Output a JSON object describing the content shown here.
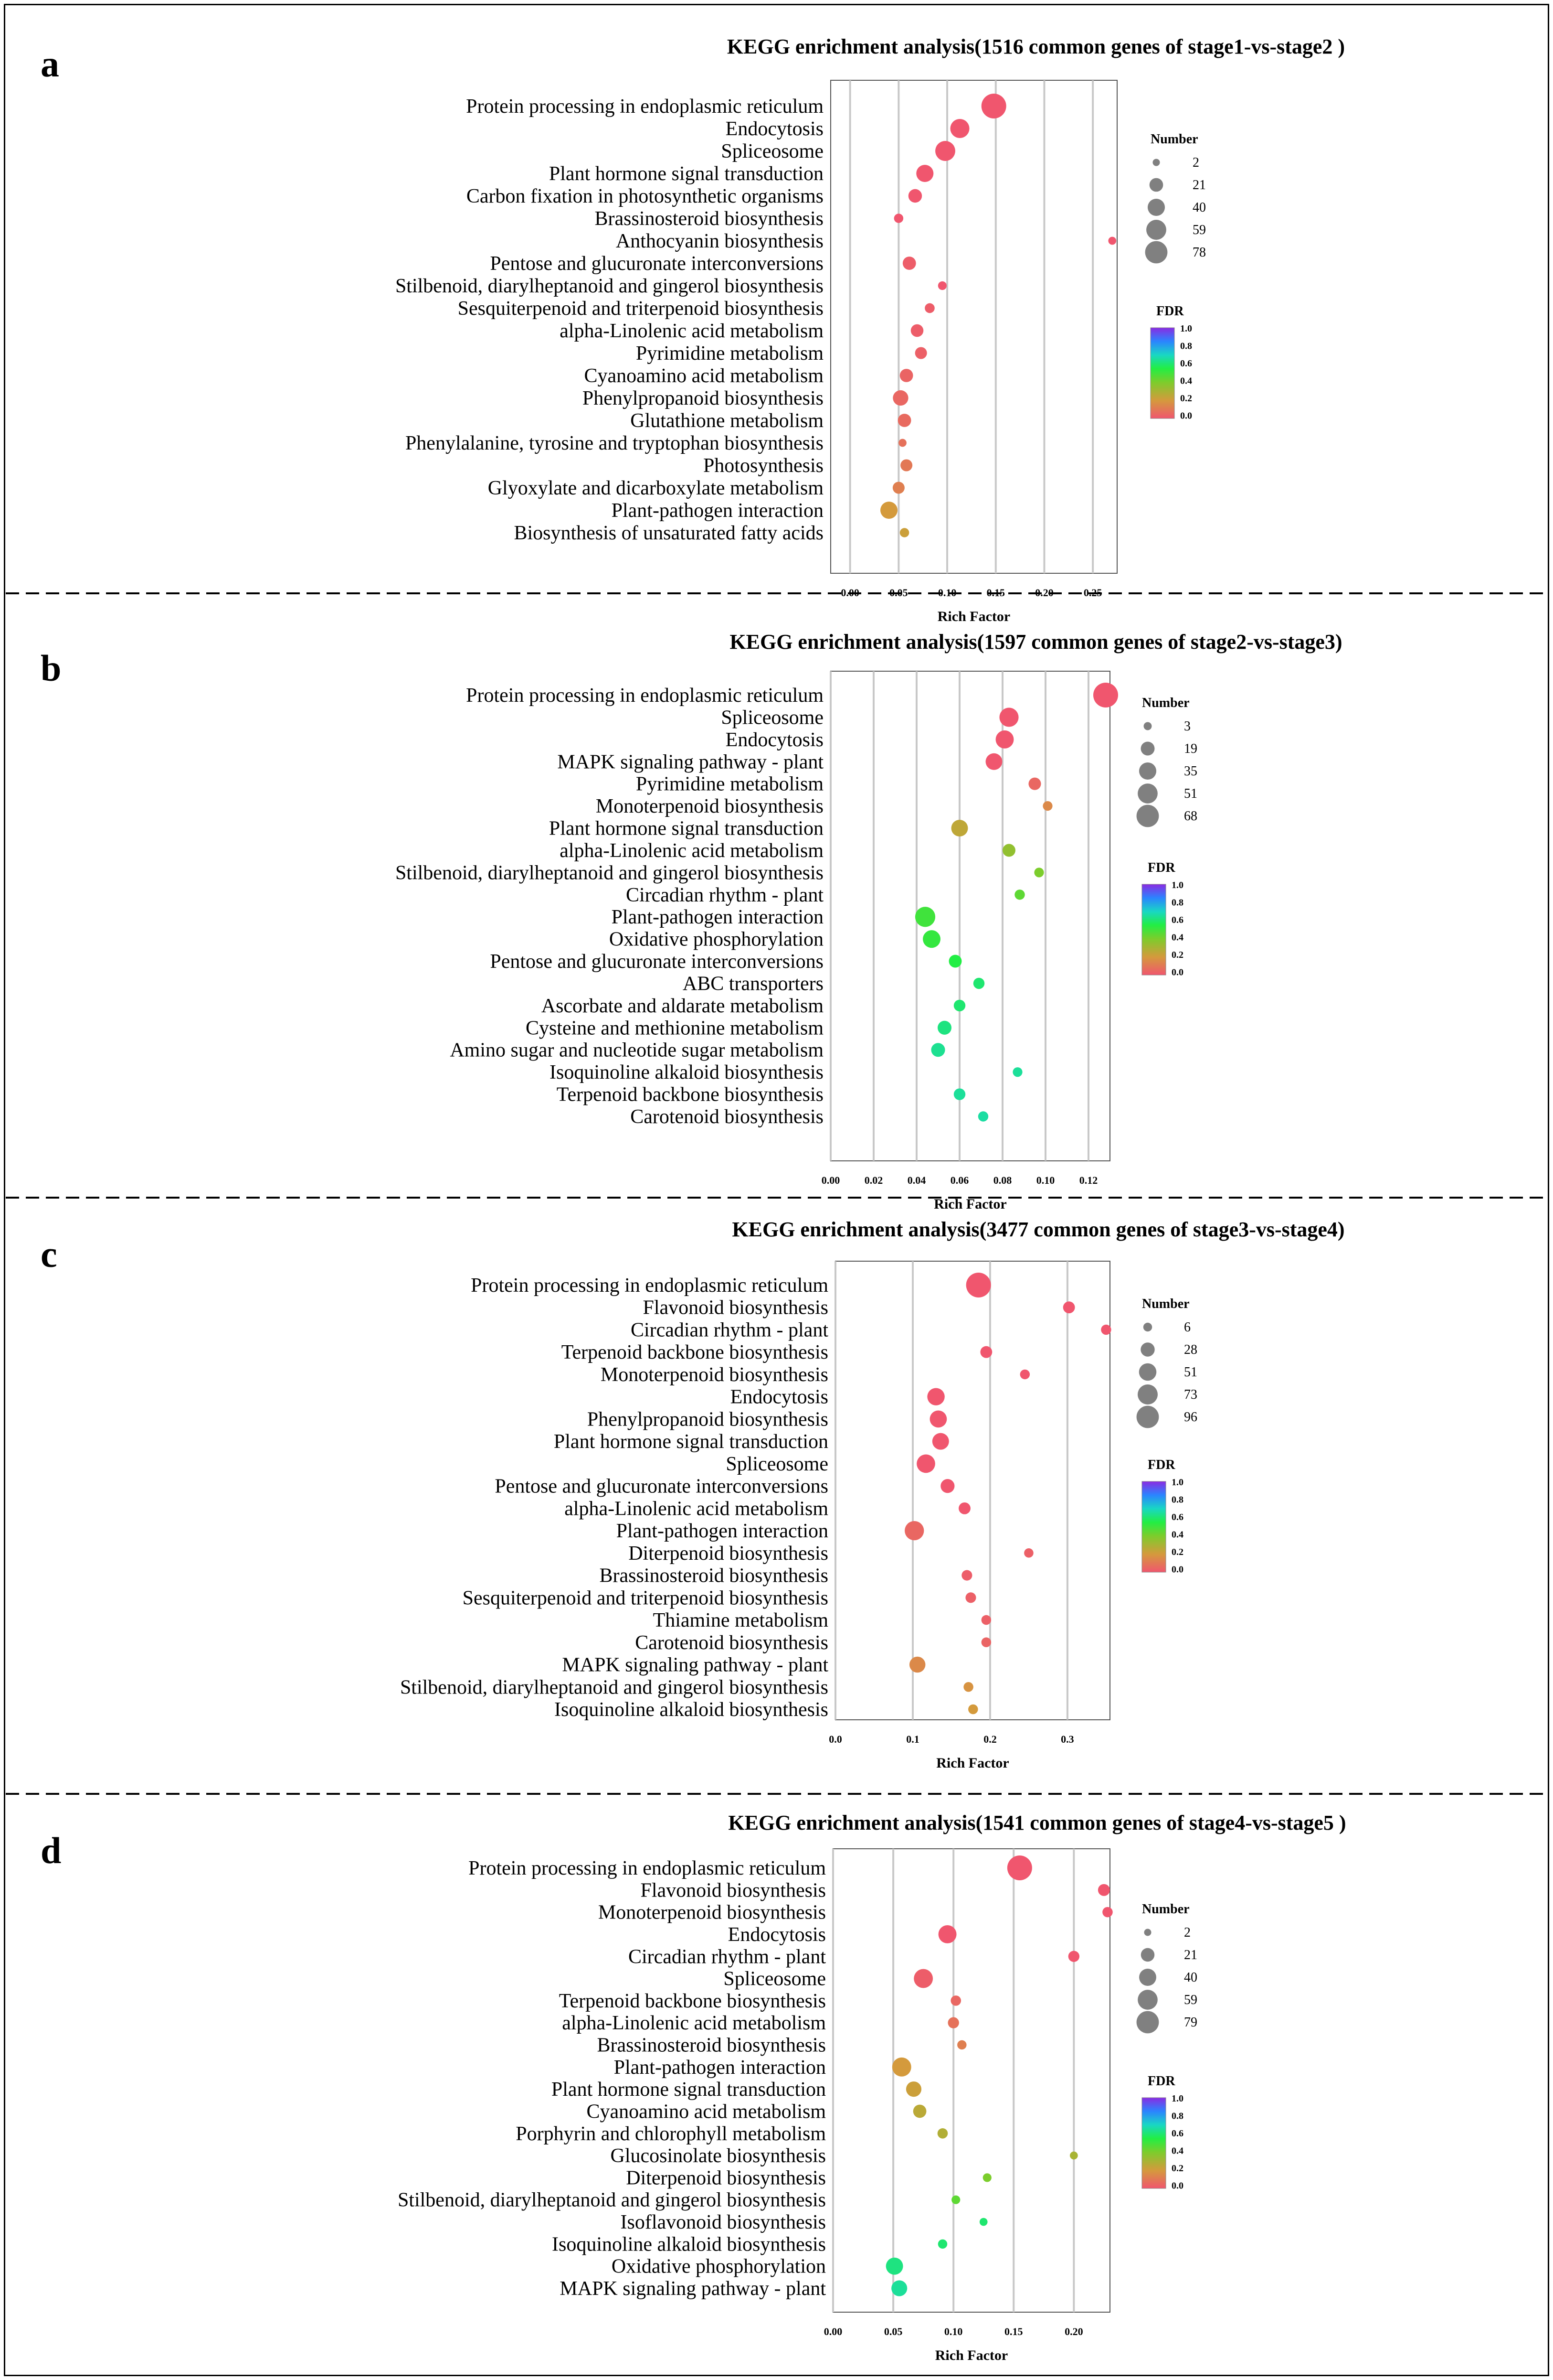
{
  "figure": {
    "legend_size_title": "Number",
    "legend_color_title": "FDR",
    "fdr_ticks": [
      "1.0",
      "0.8",
      "0.6",
      "0.4",
      "0.2",
      "0.0"
    ]
  },
  "chart_data": [
    {
      "panel": "a",
      "type": "scatter",
      "title": "KEGG enrichment analysis(1516 common genes of stage1-vs-stage2 )",
      "xlabel": "Rich Factor",
      "xlim": [
        -0.02,
        0.275
      ],
      "xticks": [
        0.0,
        0.05,
        0.1,
        0.15,
        0.2,
        0.25
      ],
      "xtick_labels": [
        "0.00",
        "0.05",
        "0.10",
        "0.15",
        "0.20",
        "0.25"
      ],
      "size_legend": [
        2,
        21,
        40,
        59,
        78
      ],
      "points": [
        {
          "pathway": "Protein processing in endoplasmic reticulum",
          "x": 0.148,
          "count": 78,
          "fdr": 0.0
        },
        {
          "pathway": "Endocytosis",
          "x": 0.113,
          "count": 40,
          "fdr": 0.0
        },
        {
          "pathway": "Spliceosome",
          "x": 0.098,
          "count": 45,
          "fdr": 0.0
        },
        {
          "pathway": "Plant hormone signal transduction",
          "x": 0.077,
          "count": 30,
          "fdr": 0.0
        },
        {
          "pathway": "Carbon fixation in photosynthetic organisms",
          "x": 0.067,
          "count": 15,
          "fdr": 0.0
        },
        {
          "pathway": "Brassinosteroid biosynthesis",
          "x": 0.05,
          "count": 4,
          "fdr": 0.0
        },
        {
          "pathway": "Anthocyanin biosynthesis",
          "x": 0.27,
          "count": 2,
          "fdr": 0.0
        },
        {
          "pathway": "Pentose and glucuronate interconversions",
          "x": 0.061,
          "count": 14,
          "fdr": 0.02
        },
        {
          "pathway": "Stilbenoid, diarylheptanoid and gingerol biosynthesis",
          "x": 0.095,
          "count": 3,
          "fdr": 0.0
        },
        {
          "pathway": "Sesquiterpenoid and triterpenoid biosynthesis",
          "x": 0.082,
          "count": 5,
          "fdr": 0.02
        },
        {
          "pathway": "alpha-Linolenic acid metabolism",
          "x": 0.069,
          "count": 12,
          "fdr": 0.02
        },
        {
          "pathway": "Pyrimidine metabolism",
          "x": 0.073,
          "count": 10,
          "fdr": 0.03
        },
        {
          "pathway": "Cyanoamino acid metabolism",
          "x": 0.058,
          "count": 14,
          "fdr": 0.04
        },
        {
          "pathway": "Phenylpropanoid biosynthesis",
          "x": 0.052,
          "count": 22,
          "fdr": 0.05
        },
        {
          "pathway": "Glutathione metabolism",
          "x": 0.056,
          "count": 14,
          "fdr": 0.06
        },
        {
          "pathway": "Phenylalanine, tyrosine and tryptophan biosynthesis",
          "x": 0.054,
          "count": 2,
          "fdr": 0.08
        },
        {
          "pathway": "Photosynthesis",
          "x": 0.058,
          "count": 10,
          "fdr": 0.1
        },
        {
          "pathway": "Glyoxylate and dicarboxylate metabolism",
          "x": 0.05,
          "count": 10,
          "fdr": 0.12
        },
        {
          "pathway": "Plant-pathogen interaction",
          "x": 0.04,
          "count": 30,
          "fdr": 0.2
        },
        {
          "pathway": "Biosynthesis of unsaturated fatty acids",
          "x": 0.056,
          "count": 4,
          "fdr": 0.22
        }
      ]
    },
    {
      "panel": "b",
      "type": "scatter",
      "title": "KEGG enrichment analysis(1597 common genes of stage2-vs-stage3)",
      "xlabel": "Rich Factor",
      "xlim": [
        0.0,
        0.13
      ],
      "xticks": [
        0.0,
        0.02,
        0.04,
        0.06,
        0.08,
        0.1,
        0.12
      ],
      "xtick_labels": [
        "0.00",
        "0.02",
        "0.04",
        "0.06",
        "0.08",
        "0.10",
        "0.12"
      ],
      "size_legend": [
        3,
        19,
        35,
        51,
        68
      ],
      "points": [
        {
          "pathway": "Protein processing in endoplasmic reticulum",
          "x": 0.128,
          "count": 68,
          "fdr": 0.0
        },
        {
          "pathway": "Spliceosome",
          "x": 0.083,
          "count": 35,
          "fdr": 0.0
        },
        {
          "pathway": "Endocytosis",
          "x": 0.081,
          "count": 30,
          "fdr": 0.0
        },
        {
          "pathway": "MAPK signaling pathway - plant",
          "x": 0.076,
          "count": 24,
          "fdr": 0.0
        },
        {
          "pathway": "Pyrimidine metabolism",
          "x": 0.095,
          "count": 10,
          "fdr": 0.05
        },
        {
          "pathway": "Monoterpenoid biosynthesis",
          "x": 0.101,
          "count": 4,
          "fdr": 0.15
        },
        {
          "pathway": "Plant hormone signal transduction",
          "x": 0.06,
          "count": 24,
          "fdr": 0.25
        },
        {
          "pathway": "alpha-Linolenic acid metabolism",
          "x": 0.083,
          "count": 11,
          "fdr": 0.35
        },
        {
          "pathway": "Stilbenoid, diarylheptanoid and gingerol biosynthesis",
          "x": 0.097,
          "count": 4,
          "fdr": 0.4
        },
        {
          "pathway": "Circadian rhythm - plant",
          "x": 0.088,
          "count": 5,
          "fdr": 0.45
        },
        {
          "pathway": "Plant-pathogen interaction",
          "x": 0.044,
          "count": 40,
          "fdr": 0.5
        },
        {
          "pathway": "Oxidative phosphorylation",
          "x": 0.047,
          "count": 28,
          "fdr": 0.52
        },
        {
          "pathway": "Pentose and glucuronate interconversions",
          "x": 0.058,
          "count": 11,
          "fdr": 0.55
        },
        {
          "pathway": "ABC transporters",
          "x": 0.069,
          "count": 7,
          "fdr": 0.6
        },
        {
          "pathway": "Ascorbate and aldarate metabolism",
          "x": 0.06,
          "count": 8,
          "fdr": 0.6
        },
        {
          "pathway": "Cysteine and methionine metabolism",
          "x": 0.053,
          "count": 14,
          "fdr": 0.62
        },
        {
          "pathway": "Amino sugar and nucleotide sugar metabolism",
          "x": 0.05,
          "count": 14,
          "fdr": 0.64
        },
        {
          "pathway": "Isoquinoline alkaloid biosynthesis",
          "x": 0.087,
          "count": 4,
          "fdr": 0.65
        },
        {
          "pathway": "Terpenoid backbone biosynthesis",
          "x": 0.06,
          "count": 8,
          "fdr": 0.65
        },
        {
          "pathway": "Carotenoid biosynthesis",
          "x": 0.071,
          "count": 5,
          "fdr": 0.66
        }
      ]
    },
    {
      "panel": "c",
      "type": "scatter",
      "title": "KEGG enrichment analysis(3477 common genes of stage3-vs-stage4)",
      "xlabel": "Rich Factor",
      "xlim": [
        0.0,
        0.355
      ],
      "xticks": [
        0.0,
        0.1,
        0.2,
        0.3
      ],
      "xtick_labels": [
        "0.0",
        "0.1",
        "0.2",
        "0.3"
      ],
      "size_legend": [
        6,
        28,
        51,
        73,
        96
      ],
      "points": [
        {
          "pathway": "Protein processing in endoplasmic reticulum",
          "x": 0.185,
          "count": 96,
          "fdr": 0.0
        },
        {
          "pathway": "Flavonoid biosynthesis",
          "x": 0.302,
          "count": 12,
          "fdr": 0.0
        },
        {
          "pathway": "Circadian rhythm - plant",
          "x": 0.35,
          "count": 7,
          "fdr": 0.0
        },
        {
          "pathway": "Terpenoid backbone biosynthesis",
          "x": 0.195,
          "count": 12,
          "fdr": 0.0
        },
        {
          "pathway": "Monoterpenoid biosynthesis",
          "x": 0.245,
          "count": 6,
          "fdr": 0.0
        },
        {
          "pathway": "Endocytosis",
          "x": 0.13,
          "count": 38,
          "fdr": 0.0
        },
        {
          "pathway": "Phenylpropanoid biosynthesis",
          "x": 0.133,
          "count": 36,
          "fdr": 0.0
        },
        {
          "pathway": "Plant hormone signal transduction",
          "x": 0.136,
          "count": 34,
          "fdr": 0.0
        },
        {
          "pathway": "Spliceosome",
          "x": 0.117,
          "count": 45,
          "fdr": 0.0
        },
        {
          "pathway": "Pentose and glucuronate interconversions",
          "x": 0.145,
          "count": 20,
          "fdr": 0.0
        },
        {
          "pathway": "alpha-Linolenic acid metabolism",
          "x": 0.167,
          "count": 12,
          "fdr": 0.0
        },
        {
          "pathway": "Plant-pathogen interaction",
          "x": 0.102,
          "count": 50,
          "fdr": 0.05
        },
        {
          "pathway": "Diterpenoid biosynthesis",
          "x": 0.25,
          "count": 5,
          "fdr": 0.03
        },
        {
          "pathway": "Brassinosteroid biosynthesis",
          "x": 0.17,
          "count": 8,
          "fdr": 0.02
        },
        {
          "pathway": "Sesquiterpenoid and triterpenoid biosynthesis",
          "x": 0.175,
          "count": 8,
          "fdr": 0.03
        },
        {
          "pathway": "Thiamine metabolism",
          "x": 0.195,
          "count": 6,
          "fdr": 0.03
        },
        {
          "pathway": "Carotenoid biosynthesis",
          "x": 0.195,
          "count": 6,
          "fdr": 0.04
        },
        {
          "pathway": "MAPK signaling pathway - plant",
          "x": 0.106,
          "count": 30,
          "fdr": 0.15
        },
        {
          "pathway": "Stilbenoid, diarylheptanoid and gingerol biosynthesis",
          "x": 0.172,
          "count": 6,
          "fdr": 0.18
        },
        {
          "pathway": "Isoquinoline alkaloid biosynthesis",
          "x": 0.178,
          "count": 6,
          "fdr": 0.2
        }
      ]
    },
    {
      "panel": "d",
      "type": "scatter",
      "title": "KEGG enrichment analysis(1541 common genes of stage4-vs-stage5 )",
      "xlabel": "Rich Factor",
      "xlim": [
        0.0,
        0.23
      ],
      "xticks": [
        0.0,
        0.05,
        0.1,
        0.15,
        0.2
      ],
      "xtick_labels": [
        "0.00",
        "0.05",
        "0.10",
        "0.15",
        "0.20"
      ],
      "size_legend": [
        2,
        21,
        40,
        59,
        79
      ],
      "points": [
        {
          "pathway": "Protein processing in endoplasmic reticulum",
          "x": 0.155,
          "count": 79,
          "fdr": 0.0
        },
        {
          "pathway": "Flavonoid biosynthesis",
          "x": 0.225,
          "count": 10,
          "fdr": 0.0
        },
        {
          "pathway": "Monoterpenoid biosynthesis",
          "x": 0.228,
          "count": 6,
          "fdr": 0.0
        },
        {
          "pathway": "Endocytosis",
          "x": 0.095,
          "count": 35,
          "fdr": 0.0
        },
        {
          "pathway": "Circadian rhythm - plant",
          "x": 0.2,
          "count": 8,
          "fdr": 0.0
        },
        {
          "pathway": "Spliceosome",
          "x": 0.075,
          "count": 40,
          "fdr": 0.02
        },
        {
          "pathway": "Terpenoid backbone biosynthesis",
          "x": 0.102,
          "count": 6,
          "fdr": 0.05
        },
        {
          "pathway": "alpha-Linolenic acid metabolism",
          "x": 0.1,
          "count": 8,
          "fdr": 0.08
        },
        {
          "pathway": "Brassinosteroid biosynthesis",
          "x": 0.107,
          "count": 4,
          "fdr": 0.12
        },
        {
          "pathway": "Plant-pathogen interaction",
          "x": 0.057,
          "count": 40,
          "fdr": 0.2
        },
        {
          "pathway": "Plant hormone signal transduction",
          "x": 0.067,
          "count": 22,
          "fdr": 0.22
        },
        {
          "pathway": "Cyanoamino acid metabolism",
          "x": 0.072,
          "count": 14,
          "fdr": 0.26
        },
        {
          "pathway": "Porphyrin and chlorophyll metabolism",
          "x": 0.091,
          "count": 6,
          "fdr": 0.28
        },
        {
          "pathway": "Glucosinolate biosynthesis",
          "x": 0.2,
          "count": 2,
          "fdr": 0.3
        },
        {
          "pathway": "Diterpenoid biosynthesis",
          "x": 0.128,
          "count": 3,
          "fdr": 0.4
        },
        {
          "pathway": "Stilbenoid, diarylheptanoid and gingerol biosynthesis",
          "x": 0.102,
          "count": 3,
          "fdr": 0.45
        },
        {
          "pathway": "Isoflavonoid biosynthesis",
          "x": 0.125,
          "count": 2,
          "fdr": 0.6
        },
        {
          "pathway": "Isoquinoline alkaloid biosynthesis",
          "x": 0.091,
          "count": 4,
          "fdr": 0.6
        },
        {
          "pathway": "Oxidative phosphorylation",
          "x": 0.051,
          "count": 30,
          "fdr": 0.62
        },
        {
          "pathway": "MAPK signaling pathway - plant",
          "x": 0.055,
          "count": 24,
          "fdr": 0.65
        }
      ]
    }
  ]
}
